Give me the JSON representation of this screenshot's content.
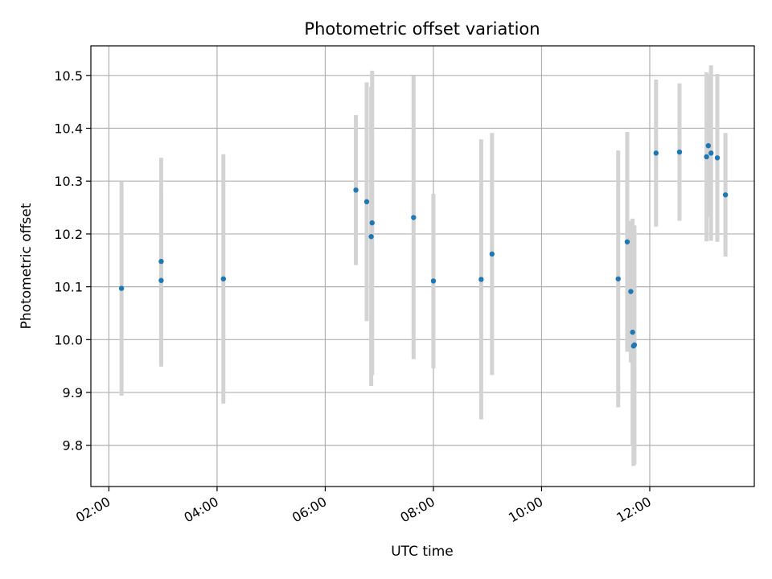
{
  "chart_data": {
    "type": "scatter",
    "title": "Photometric offset variation",
    "xlabel": "UTC time",
    "ylabel": "Photometric offset",
    "x_axis_kind": "time",
    "xlim": [
      "01:40",
      "13:56"
    ],
    "ylim": [
      9.722,
      10.556
    ],
    "xticks": [
      "02:00",
      "04:00",
      "06:00",
      "08:00",
      "10:00",
      "12:00"
    ],
    "yticks": [
      "9.8",
      "9.9",
      "10.0",
      "10.1",
      "10.2",
      "10.3",
      "10.4",
      "10.5"
    ],
    "grid": true,
    "colors": {
      "point": "#1f77b4",
      "errorbar": "#d3d3d3",
      "grid": "#b0b0b0"
    },
    "series": [
      {
        "points": [
          {
            "x": "02:14",
            "y": 10.097,
            "err": 0.203
          },
          {
            "x": "02:58",
            "y": 10.112,
            "err": 0.163
          },
          {
            "x": "02:58",
            "y": 10.148,
            "err": 0.196
          },
          {
            "x": "04:07",
            "y": 10.115,
            "err": 0.236
          },
          {
            "x": "06:34",
            "y": 10.283,
            "err": 0.142
          },
          {
            "x": "06:46",
            "y": 10.261,
            "err": 0.226
          },
          {
            "x": "06:51",
            "y": 10.195,
            "err": 0.283
          },
          {
            "x": "06:52",
            "y": 10.221,
            "err": 0.288
          },
          {
            "x": "07:38",
            "y": 10.231,
            "err": 0.268
          },
          {
            "x": "08:00",
            "y": 10.111,
            "err": 0.165
          },
          {
            "x": "08:53",
            "y": 10.114,
            "err": 0.265
          },
          {
            "x": "09:05",
            "y": 10.162,
            "err": 0.229
          },
          {
            "x": "11:25",
            "y": 10.115,
            "err": 0.243
          },
          {
            "x": "11:35",
            "y": 10.185,
            "err": 0.208
          },
          {
            "x": "11:39",
            "y": 10.091,
            "err": 0.134
          },
          {
            "x": "11:41",
            "y": 10.014,
            "err": 0.215
          },
          {
            "x": "11:42",
            "y": 9.988,
            "err": 0.227
          },
          {
            "x": "11:43",
            "y": 9.99,
            "err": 0.226
          },
          {
            "x": "12:07",
            "y": 10.353,
            "err": 0.139
          },
          {
            "x": "12:33",
            "y": 10.355,
            "err": 0.13
          },
          {
            "x": "13:03",
            "y": 10.346,
            "err": 0.16
          },
          {
            "x": "13:05",
            "y": 10.367,
            "err": 0.135
          },
          {
            "x": "13:08",
            "y": 10.353,
            "err": 0.166
          },
          {
            "x": "13:15",
            "y": 10.344,
            "err": 0.159
          },
          {
            "x": "13:24",
            "y": 10.274,
            "err": 0.117
          }
        ]
      }
    ]
  }
}
